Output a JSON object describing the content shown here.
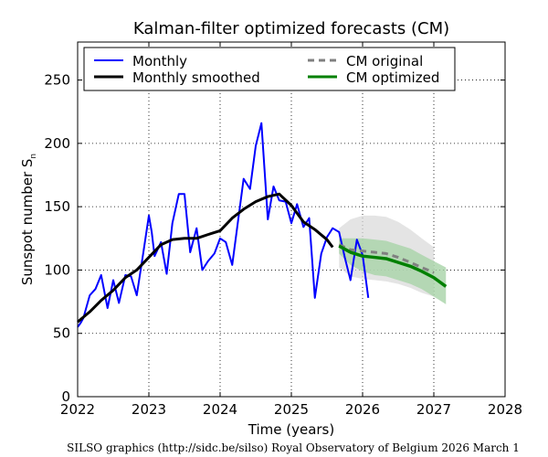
{
  "chart_data": {
    "type": "line",
    "title": "Kalman-filter optimized forecasts (CM)",
    "xlabel": "Time (years)",
    "ylabel_main": "Sunspot number S",
    "ylabel_sub": "n",
    "xlim": [
      2022,
      2028
    ],
    "ylim": [
      0,
      280
    ],
    "xticks": [
      2022,
      2023,
      2024,
      2025,
      2026,
      2027,
      2028
    ],
    "yticks": [
      0,
      50,
      100,
      150,
      200,
      250
    ],
    "grid": true,
    "legend_position": "top",
    "legend": {
      "monthly": "Monthly",
      "smoothed": "Monthly smoothed",
      "cm_original": "CM original",
      "cm_optimized": "CM optimized"
    },
    "colors": {
      "monthly": "#0000ff",
      "smoothed": "#000000",
      "cm_original": "#808080",
      "cm_optimized": "#008000",
      "band_original": "#d9d9d9",
      "band_optimized": "#a8d3a8"
    },
    "series": [
      {
        "name": "Monthly",
        "x": [
          2022.0,
          2022.04,
          2022.08,
          2022.17,
          2022.25,
          2022.33,
          2022.42,
          2022.5,
          2022.58,
          2022.67,
          2022.75,
          2022.83,
          2022.92,
          2023.0,
          2023.04,
          2023.08,
          2023.17,
          2023.25,
          2023.33,
          2023.42,
          2023.5,
          2023.58,
          2023.67,
          2023.75,
          2023.83,
          2023.92,
          2024.0,
          2024.08,
          2024.17,
          2024.25,
          2024.33,
          2024.42,
          2024.5,
          2024.58,
          2024.67,
          2024.75,
          2024.83,
          2024.92,
          2025.0,
          2025.08,
          2025.17,
          2025.25,
          2025.33,
          2025.42,
          2025.5,
          2025.58,
          2025.67,
          2025.75,
          2025.83,
          2025.92,
          2026.0,
          2026.08
        ],
        "values": [
          55,
          58,
          62,
          80,
          85,
          96,
          70,
          92,
          74,
          96,
          95,
          80,
          113,
          143,
          130,
          111,
          122,
          97,
          137,
          160,
          160,
          114,
          133,
          100,
          107,
          113,
          125,
          122,
          104,
          138,
          172,
          164,
          198,
          216,
          140,
          166,
          155,
          154,
          137,
          152,
          134,
          141,
          78,
          113,
          126,
          133,
          130,
          110,
          92,
          124,
          112,
          78
        ]
      },
      {
        "name": "Monthly smoothed",
        "x": [
          2022.0,
          2022.17,
          2022.33,
          2022.5,
          2022.67,
          2022.83,
          2023.0,
          2023.17,
          2023.33,
          2023.5,
          2023.67,
          2023.83,
          2024.0,
          2024.17,
          2024.33,
          2024.5,
          2024.67,
          2024.83,
          2025.0,
          2025.17,
          2025.33,
          2025.5,
          2025.58
        ],
        "values": [
          59,
          67,
          76,
          84,
          94,
          100,
          110,
          120,
          124,
          125,
          125,
          128,
          131,
          141,
          148,
          154,
          158,
          160,
          151,
          138,
          132,
          124,
          118
        ]
      },
      {
        "name": "CM original",
        "x": [
          2025.67,
          2025.83,
          2026.0,
          2026.17,
          2026.33,
          2026.5,
          2026.67,
          2026.83,
          2027.0
        ],
        "values": [
          120,
          116,
          115,
          114,
          113,
          110,
          106,
          102,
          98
        ]
      },
      {
        "name": "CM optimized",
        "x": [
          2025.67,
          2025.83,
          2026.0,
          2026.17,
          2026.33,
          2026.5,
          2026.67,
          2026.83,
          2027.0,
          2027.17
        ],
        "values": [
          119,
          114,
          111,
          110,
          109,
          106,
          103,
          99,
          94,
          87
        ]
      }
    ],
    "bands": [
      {
        "x": [
          2025.67,
          2025.83,
          2026.0,
          2026.17,
          2026.33,
          2026.5,
          2026.67,
          2026.83,
          2027.0
        ],
        "upper": [
          133,
          140,
          143,
          143,
          142,
          138,
          132,
          125,
          118
        ],
        "lower": [
          102,
          95,
          93,
          92,
          91,
          89,
          86,
          82,
          79
        ]
      },
      {
        "x": [
          2025.67,
          2025.83,
          2026.0,
          2026.17,
          2026.33,
          2026.5,
          2026.67,
          2026.83,
          2027.0,
          2027.17
        ],
        "upper": [
          125,
          125,
          125,
          124,
          123,
          120,
          117,
          112,
          107,
          102
        ],
        "lower": [
          113,
          104,
          99,
          96,
          95,
          92,
          89,
          85,
          79,
          73
        ]
      }
    ]
  },
  "footer": "SILSO graphics (http://sidc.be/silso)  Royal Observatory of Belgium  2026 March 1"
}
